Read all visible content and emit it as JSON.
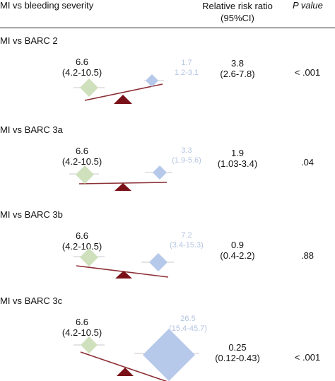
{
  "header": {
    "title": "MI vs bleeding severity",
    "rr_label_line1": "Relative risk ratio",
    "rr_label_line2": "(95%CI)",
    "p_label": "P value"
  },
  "colors": {
    "mi": "#cfe0bd",
    "bleeding": "#b7c9ea",
    "fulcrum": "#7a1118",
    "beam": "#8b2f35",
    "whisker": "#c8c8c8"
  },
  "rows": [
    {
      "title": "MI vs BARC 2",
      "mi_value": "6.6",
      "mi_ci": "(4.2-10.5)",
      "bleed_value": "1.7",
      "bleed_ci": "1.2-3.1",
      "rr_value": "3.8",
      "rr_ci": "(2.6-7.8)",
      "p_value": "< .001"
    },
    {
      "title": "MI vs BARC 3a",
      "mi_value": "6.6",
      "mi_ci": "(4.2-10.5)",
      "bleed_value": "3.3",
      "bleed_ci": "(1.9-5.6)",
      "rr_value": "1.9",
      "rr_ci": "(1.03-3.4)",
      "p_value": ".04"
    },
    {
      "title": "MI vs BARC 3b",
      "mi_value": "6.6",
      "mi_ci": "(4.2-10.5)",
      "bleed_value": "7.2",
      "bleed_ci": "(3.4-15.3)",
      "rr_value": "0.9",
      "rr_ci": "(0.4-2.2)",
      "p_value": ".88"
    },
    {
      "title": "MI vs BARC 3c",
      "mi_value": "6.6",
      "mi_ci": "(4.2-10.5)",
      "bleed_value": "26.5",
      "bleed_ci": "(15.4-45.7)",
      "rr_value": "0.25",
      "rr_ci": "(0.12-0.43)",
      "p_value": "< .001"
    }
  ]
}
